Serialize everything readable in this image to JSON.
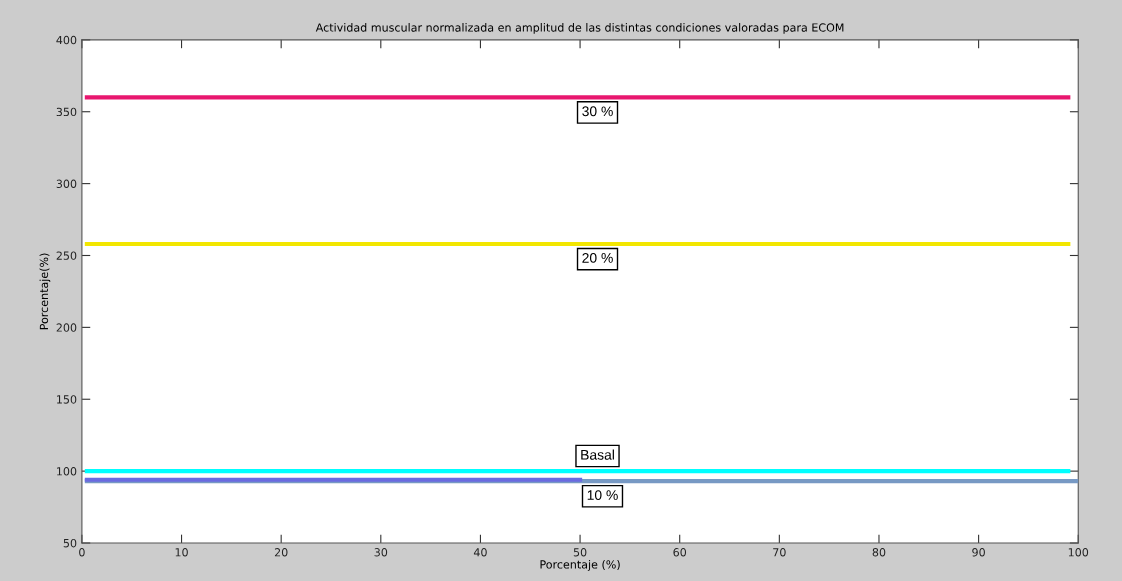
{
  "chart_data": {
    "type": "line",
    "title": "Actividad muscular normalizada en amplitud de las distintas condiciones valoradas para ECOM",
    "xlabel": "Porcentaje (%)",
    "ylabel": "Porcentaje(%)",
    "series": [
      {
        "name": "30 %",
        "color": "#e8176f",
        "x": [
          0.5,
          99
        ],
        "values": [
          360,
          360
        ]
      },
      {
        "name": "20 %",
        "color": "#f2e600",
        "x": [
          0.5,
          99
        ],
        "values": [
          258,
          258
        ]
      },
      {
        "name": "Basal",
        "color": "#00ffff",
        "x": [
          0.5,
          99
        ],
        "values": [
          100,
          100
        ]
      },
      {
        "name": "10 %",
        "color": "#7799c4",
        "x": [
          0.5,
          100
        ],
        "values": [
          93,
          93
        ]
      },
      {
        "color": "#6a6ae0",
        "x": [
          0.5,
          50
        ],
        "values": [
          94,
          94
        ]
      }
    ],
    "xlim": [
      0,
      100
    ],
    "ylim": [
      50,
      400
    ],
    "xticks": [
      0,
      10,
      20,
      30,
      40,
      50,
      60,
      70,
      80,
      90,
      100
    ],
    "yticks": [
      50,
      100,
      150,
      200,
      250,
      300,
      350,
      400
    ],
    "grid": false
  }
}
